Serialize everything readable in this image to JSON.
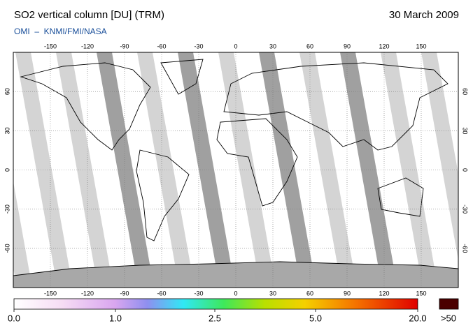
{
  "header": {
    "title": "SO2 vertical column [DU] (TRM)",
    "date": "30 March 2009",
    "subtitle": "OMI  –  KNMI/FMI/NASA"
  },
  "map": {
    "xlim": [
      -180,
      180
    ],
    "ylim": [
      -90,
      90
    ],
    "xticks": [
      -150,
      -120,
      -90,
      -60,
      -30,
      0,
      30,
      60,
      90,
      120,
      150
    ],
    "yticks": [
      60,
      30,
      0,
      -30,
      -60
    ]
  },
  "colorbar": {
    "ticks": [
      {
        "value": 0,
        "label": "0.0"
      },
      {
        "value": 1,
        "label": "1.0"
      },
      {
        "value": 2.5,
        "label": "2.5"
      },
      {
        "value": 5,
        "label": "5.0"
      },
      {
        "value": 20,
        "label": "20.0"
      }
    ],
    "overflow": ">50"
  }
}
